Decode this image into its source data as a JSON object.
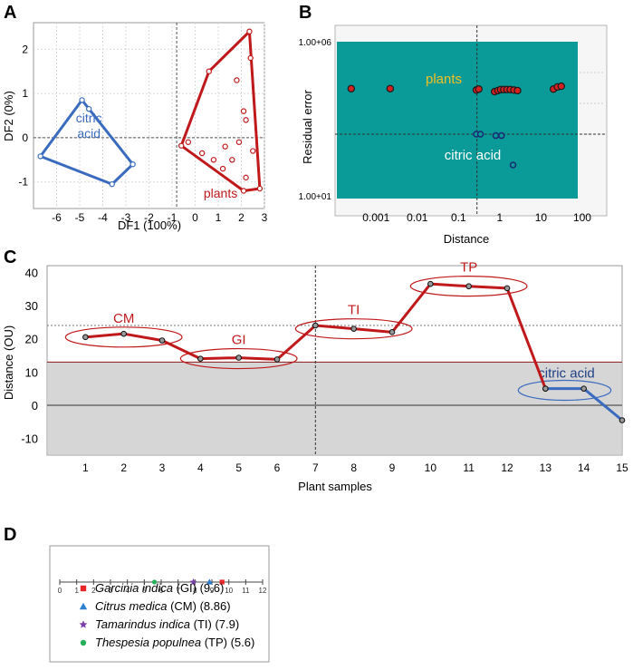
{
  "colors": {
    "plants": "#c0191b",
    "acid": "#3a6bbf",
    "teal": "#0a9a98",
    "grey_band": "#d6d6d6",
    "legend_gi": "#e8262a",
    "legend_cm": "#2f7fd0",
    "legend_ti": "#7a3fa8",
    "legend_tp": "#27b05a"
  },
  "chart_data": [
    {
      "panel": "A",
      "type": "scatter",
      "xlabel": "DF1 (100%)",
      "ylabel": "DF2 (0%)",
      "xlim": [
        -7,
        3
      ],
      "ylim": [
        -1.6,
        2.6
      ],
      "xticks": [
        "-6",
        "-5",
        "-4",
        "-3",
        "-2",
        "-1",
        "0",
        "1",
        "2",
        "3"
      ],
      "yticks": [
        "-1",
        "0",
        "1",
        "2"
      ],
      "series": [
        {
          "name": "citric acid",
          "label_lines": [
            "citric",
            "acid"
          ],
          "hull": [
            [
              -4.9,
              0.85
            ],
            [
              -2.7,
              -0.6
            ],
            [
              -3.6,
              -1.05
            ],
            [
              -6.7,
              -0.42
            ]
          ],
          "points": [
            [
              -4.9,
              0.85
            ],
            [
              -4.6,
              0.65
            ],
            [
              -2.7,
              -0.6
            ],
            [
              -3.6,
              -1.05
            ],
            [
              -6.7,
              -0.42
            ]
          ]
        },
        {
          "name": "plants",
          "label_lines": [
            "plants"
          ],
          "hull": [
            [
              -0.6,
              -0.18
            ],
            [
              0.6,
              1.5
            ],
            [
              2.35,
              2.4
            ],
            [
              2.8,
              -1.15
            ],
            [
              2.1,
              -1.2
            ]
          ],
          "points": [
            [
              -0.6,
              -0.18
            ],
            [
              0.6,
              1.5
            ],
            [
              2.35,
              2.4
            ],
            [
              2.8,
              -1.15
            ],
            [
              2.1,
              -1.2
            ],
            [
              1.8,
              1.3
            ],
            [
              2.1,
              0.6
            ],
            [
              2.2,
              0.4
            ],
            [
              1.9,
              -0.1
            ],
            [
              1.6,
              -0.5
            ],
            [
              1.2,
              -0.7
            ],
            [
              0.8,
              -0.5
            ],
            [
              1.3,
              -0.2
            ],
            [
              -0.3,
              -0.1
            ],
            [
              2.5,
              -0.3
            ],
            [
              2.4,
              1.8
            ],
            [
              2.2,
              -0.9
            ],
            [
              0.3,
              -0.35
            ]
          ]
        }
      ]
    },
    {
      "panel": "B",
      "type": "scatter",
      "xlabel": "Distance",
      "ylabel": "Residual error",
      "x_scale": "log",
      "y_scale": "log",
      "ylim": [
        10,
        1000000
      ],
      "xtick_values": [
        0.001,
        0.01,
        0.1,
        1,
        10,
        100
      ],
      "xticks": [
        "0.001",
        "0.01",
        "0.1",
        "1",
        "10",
        "100"
      ],
      "yticks": [
        "1.00+06",
        "1.00+01"
      ],
      "labels": [
        "plants",
        "citric acid"
      ],
      "series": [
        {
          "name": "plants",
          "points": [
            [
              0.00025,
              30000
            ],
            [
              0.0022,
              30000
            ],
            [
              0.27,
              27000
            ],
            [
              0.31,
              29000
            ],
            [
              0.75,
              24000
            ],
            [
              0.9,
              26000
            ],
            [
              1.05,
              28000
            ],
            [
              1.25,
              28000
            ],
            [
              1.5,
              28000
            ],
            [
              1.8,
              28000
            ],
            [
              2.2,
              27000
            ],
            [
              2.7,
              26000
            ],
            [
              20,
              29000
            ],
            [
              25,
              34000
            ],
            [
              31,
              36000
            ]
          ]
        },
        {
          "name": "citric acid",
          "points": [
            [
              0.27,
              1000
            ],
            [
              0.34,
              1000
            ],
            [
              0.8,
              900
            ],
            [
              1.1,
              900
            ],
            [
              2.1,
              100
            ]
          ]
        }
      ]
    },
    {
      "panel": "C",
      "type": "line",
      "xlabel": "Plant samples",
      "ylabel": "Distance (OU)",
      "xlim": [
        0,
        15
      ],
      "ylim": [
        -15,
        42
      ],
      "categories": [
        1,
        2,
        3,
        4,
        5,
        6,
        7,
        8,
        9,
        10,
        11,
        12,
        13,
        14,
        15
      ],
      "yticks": [
        "-10",
        "0",
        "10",
        "20",
        "30",
        "40"
      ],
      "series": [
        {
          "name": "plants",
          "x": [
            1,
            2,
            3,
            4,
            5,
            6,
            7,
            8,
            9,
            10,
            11,
            12,
            13
          ],
          "values": [
            20.5,
            21.5,
            19.5,
            14,
            14.3,
            13.8,
            24,
            23,
            22,
            36.5,
            35.8,
            35.2,
            5
          ]
        },
        {
          "name": "citric acid",
          "x": [
            13,
            14,
            15
          ],
          "values": [
            5,
            5,
            -4.5
          ]
        }
      ],
      "groups": [
        {
          "label": "CM",
          "from": 1,
          "to": 3
        },
        {
          "label": "GI",
          "from": 4,
          "to": 6
        },
        {
          "label": "TI",
          "from": 7,
          "to": 9
        },
        {
          "label": "TP",
          "from": 10,
          "to": 12
        },
        {
          "label": "citric acid",
          "from": 13,
          "to": 14
        }
      ],
      "threshold": 13
    },
    {
      "panel": "D",
      "type": "scatter",
      "xlim": [
        0,
        12
      ],
      "xticks": [
        "0",
        "1",
        "2",
        "3",
        "4",
        "5",
        "6",
        "7",
        "8",
        "9",
        "10",
        "11",
        "12"
      ],
      "series": [
        {
          "name": "Garcinia indica",
          "abbr": "(GI)",
          "value": 9.6,
          "value_text": "(9.6)",
          "marker": "square",
          "color_key": "legend_gi"
        },
        {
          "name": "Citrus medica",
          "abbr": "(CM)",
          "value": 8.86,
          "value_text": "(8.86)",
          "marker": "triangle",
          "color_key": "legend_cm"
        },
        {
          "name": "Tamarindus indica",
          "abbr": "(TI)",
          "value": 7.9,
          "value_text": "(7.9)",
          "marker": "star",
          "color_key": "legend_ti"
        },
        {
          "name": "Thespesia populnea",
          "abbr": "(TP)",
          "value": 5.6,
          "value_text": "(5.6)",
          "marker": "circle",
          "color_key": "legend_tp"
        }
      ]
    }
  ],
  "panels": {
    "a": "A",
    "b": "B",
    "c": "C",
    "d": "D"
  }
}
